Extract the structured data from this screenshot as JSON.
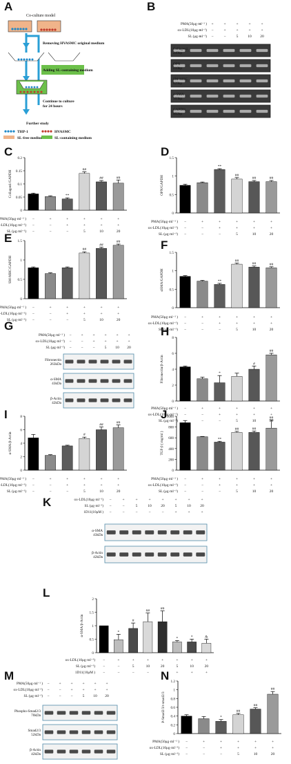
{
  "panel_labels": [
    "A",
    "B",
    "C",
    "D",
    "E",
    "F",
    "G",
    "H",
    "I",
    "J",
    "K",
    "L",
    "M",
    "N"
  ],
  "panel_a": {
    "title": "Co-culture model",
    "step1": "Removing HVASMC original medium",
    "step2": "Adding SL-containing medium",
    "step3": "Continue to culture for 24 hours",
    "step4": "Further study",
    "legend": [
      "THP-1",
      "HVASMC",
      "SL-free medium",
      "SL-containing medium"
    ],
    "colors": {
      "thp1": "#1e88c8",
      "hvasmc": "#c0392b",
      "sl_free": "#f0b48a",
      "sl_containing": "#6cc04a",
      "arrow": "#2a9fd6"
    }
  },
  "treatments": {
    "pma": "PMA(50μg·ml⁻¹ )",
    "oxldl": "ox-LDL(10μg·ml⁻¹)",
    "sl": "SL (μg·ml⁻¹)",
    "d11": "1D11(10μM )"
  },
  "sign_rows": {
    "pma": [
      "−",
      "+",
      "+",
      "+",
      "+",
      "+"
    ],
    "oxldl": [
      "−",
      "−",
      "+",
      "+",
      "+",
      "+"
    ],
    "sl": [
      "−",
      "−",
      "−",
      "5",
      "10",
      "20"
    ]
  },
  "k_rows": {
    "oxldl": [
      "−",
      "+",
      "+",
      "+",
      "+",
      "+",
      "+",
      "+"
    ],
    "sl": [
      "−",
      "−",
      "5",
      "10",
      "20",
      "5",
      "10",
      "20"
    ],
    "d11": [
      "−",
      "−",
      "−",
      "−",
      "−",
      "+",
      "+",
      "+"
    ]
  },
  "blot_b": [
    "Collagen1\n249bp",
    "OPN\n210bp",
    "SM-MHC\n829bp",
    "α-SMA\n103bp",
    "GAPDH\n492bp"
  ],
  "blot_g": [
    "Fibronectin\n263kDa",
    "α-SMA\n43kDa",
    "β-Actin\n42kDa"
  ],
  "blot_k": [
    "α-SMA\n43kDa",
    "β-Actin\n42kDa"
  ],
  "blot_m": [
    "Phospho-Smad2/3\n70kDa",
    "Smad2/3\n52kDa",
    "β-Actin\n42kDa"
  ],
  "chart_data": [
    {
      "id": "C",
      "type": "bar",
      "ylabel": "Collagen1/GAPDH",
      "ylim": [
        0,
        0.2
      ],
      "ticks": [
        0,
        0.05,
        0.1,
        0.15,
        0.2
      ],
      "values": [
        0.062,
        0.052,
        0.043,
        0.14,
        0.108,
        0.103
      ],
      "errors": [
        0.003,
        0.003,
        0.004,
        0.006,
        0.005,
        0.012
      ],
      "marks": [
        "",
        "",
        "**",
        "##",
        "##",
        "##"
      ]
    },
    {
      "id": "D",
      "type": "bar",
      "ylabel": "OPN/GAPDH",
      "ylim": [
        0,
        1.5
      ],
      "ticks": [
        0,
        0.5,
        1,
        1.5
      ],
      "values": [
        0.75,
        0.82,
        1.18,
        0.92,
        0.85,
        0.85
      ],
      "errors": [
        0.03,
        0.02,
        0.02,
        0.04,
        0.03,
        0.03
      ],
      "marks": [
        "",
        "",
        "**",
        "##",
        "##",
        "##"
      ]
    },
    {
      "id": "E",
      "type": "bar",
      "ylabel": "SM-MHC/GAPDH",
      "ylim": [
        0,
        1.5
      ],
      "ticks": [
        0,
        0.5,
        1,
        1.5
      ],
      "values": [
        0.8,
        0.65,
        0.8,
        1.18,
        1.3,
        1.38
      ],
      "errors": [
        0.02,
        0.02,
        0.02,
        0.03,
        0.03,
        0.03
      ],
      "marks": [
        "",
        "",
        "",
        "##",
        "##",
        "##"
      ]
    },
    {
      "id": "F",
      "type": "bar",
      "ylabel": "αSMA/GAPDH",
      "ylim": [
        0,
        1.5
      ],
      "ticks": [
        0,
        0.5,
        1,
        1.5
      ],
      "values": [
        0.85,
        0.72,
        0.63,
        1.18,
        1.1,
        1.08
      ],
      "errors": [
        0.02,
        0.02,
        0.03,
        0.03,
        0.03,
        0.03
      ],
      "marks": [
        "",
        "",
        "**",
        "##",
        "##",
        "##"
      ]
    },
    {
      "id": "H",
      "type": "bar",
      "ylabel": "Fibronectin/β-Actin",
      "ylim": [
        0,
        8
      ],
      "ticks": [
        0,
        2,
        4,
        6,
        8
      ],
      "values": [
        4.3,
        2.8,
        2.3,
        3.1,
        4.0,
        5.8
      ],
      "errors": [
        0.1,
        0.2,
        0.9,
        0.4,
        0.4,
        0.2
      ],
      "marks": [
        "",
        "",
        "*",
        "",
        "#",
        "##"
      ]
    },
    {
      "id": "I",
      "type": "bar",
      "ylabel": "α-SMA/β-Actin",
      "ylim": [
        0,
        8
      ],
      "ticks": [
        0,
        2,
        4,
        6,
        8
      ],
      "values": [
        4.8,
        2.2,
        3.6,
        4.7,
        6.0,
        6.3
      ],
      "errors": [
        0.5,
        0.1,
        0.1,
        0.2,
        0.4,
        0.4
      ],
      "marks": [
        "",
        "",
        "",
        "#",
        "##",
        "##"
      ]
    },
    {
      "id": "J",
      "type": "bar",
      "ylabel": "TGF-β ( mg/ml )",
      "ylim": [
        0,
        1000
      ],
      "ticks": [
        0,
        200,
        400,
        600,
        800,
        1000
      ],
      "values": [
        880,
        620,
        520,
        700,
        700,
        780
      ],
      "errors": [
        40,
        5,
        15,
        20,
        25,
        150
      ],
      "marks": [
        "",
        "",
        "**",
        "##",
        "##",
        "##"
      ]
    },
    {
      "id": "L",
      "type": "bar",
      "ylabel": "α-SMA/β-Actin",
      "ylim": [
        0,
        2
      ],
      "ticks": [
        0,
        0.5,
        1,
        1.5,
        2
      ],
      "values": [
        1.0,
        0.48,
        0.9,
        1.15,
        1.15,
        0.4,
        0.4,
        0.35
      ],
      "errors": [
        0.0,
        0.2,
        0.2,
        0.32,
        0.4,
        0.05,
        0.1,
        0.15
      ],
      "marks": [
        "",
        "*",
        "#",
        "##",
        "##",
        "*",
        "*",
        "&"
      ]
    },
    {
      "id": "N",
      "type": "bar",
      "ylabel": "P-Smad2/3/t-smad2/3",
      "ylim": [
        0,
        1.2
      ],
      "ticks": [
        0,
        0.2,
        0.4,
        0.6,
        0.8,
        1.0,
        1.2
      ],
      "values": [
        0.4,
        0.34,
        0.28,
        0.43,
        0.56,
        0.9
      ],
      "errors": [
        0.03,
        0.05,
        0.04,
        0.03,
        0.03,
        0.06
      ],
      "marks": [
        "",
        "",
        "*",
        "##",
        "##",
        "##"
      ]
    }
  ]
}
